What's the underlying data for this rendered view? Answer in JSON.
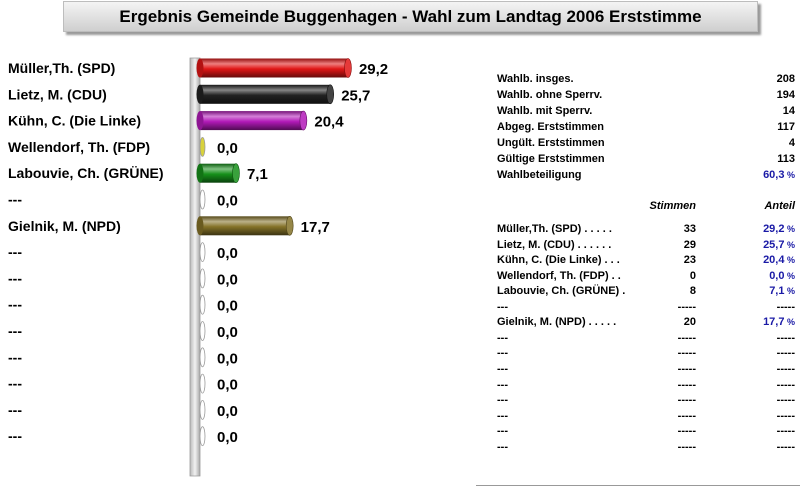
{
  "title": "Ergebnis Gemeinde Buggenhagen -  Wahl zum Landtag 2006 Erststimme",
  "chart_data": {
    "type": "bar",
    "orientation": "horizontal",
    "xlim": [
      0,
      30
    ],
    "categories": [
      "Müller,Th. (SPD)",
      "Lietz, M. (CDU)",
      "Kühn, C. (Die Linke)",
      "Wellendorf, Th. (FDP)",
      "Labouvie, Ch. (GRÜNE)",
      "---",
      "Gielnik, M. (NPD)",
      "---",
      "---",
      "---",
      "---",
      "---",
      "---",
      "---",
      "---"
    ],
    "values": [
      29.2,
      25.7,
      20.4,
      0.0,
      7.1,
      0.0,
      17.7,
      0.0,
      0.0,
      0.0,
      0.0,
      0.0,
      0.0,
      0.0,
      0.0
    ],
    "value_labels": [
      "29,2",
      "25,7",
      "20,4",
      "0,0",
      "7,1",
      "0,0",
      "17,7",
      "0,0",
      "0,0",
      "0,0",
      "0,0",
      "0,0",
      "0,0",
      "0,0",
      "0,0"
    ],
    "colors": [
      "#e01616",
      "#222222",
      "#b21ab8",
      "#d8d23c",
      "#16901a",
      "#dddddd",
      "#847228",
      "#dddddd",
      "#dddddd",
      "#dddddd",
      "#dddddd",
      "#dddddd",
      "#dddddd",
      "#dddddd",
      "#dddddd"
    ]
  },
  "summary": [
    {
      "label": "Wahlb. insges.",
      "value": "208"
    },
    {
      "label": "Wahlb. ohne Sperrv.",
      "value": "194"
    },
    {
      "label": "Wahlb. mit Sperrv.",
      "value": "14"
    },
    {
      "label": "Abgeg. Erststimmen",
      "value": "117"
    },
    {
      "label": "Ungült. Erststimmen",
      "value": "4"
    },
    {
      "label": "Gültige Erststimmen",
      "value": "113"
    },
    {
      "label": "Wahlbeteiligung",
      "value": "60,3",
      "unit": " %"
    }
  ],
  "table": {
    "headers": {
      "votes": "Stimmen",
      "share": "Anteil"
    },
    "rows": [
      {
        "name": "Müller,Th. (SPD)  .  .  .  .  .",
        "votes": "33",
        "share": "29,2",
        "unit": " %"
      },
      {
        "name": "Lietz, M. (CDU)  .  .  .  .  .  .",
        "votes": "29",
        "share": "25,7",
        "unit": " %"
      },
      {
        "name": "Kühn, C. (Die Linke)  .  .  .",
        "votes": "23",
        "share": "20,4",
        "unit": " %"
      },
      {
        "name": "Wellendorf, Th. (FDP)  .  .",
        "votes": "0",
        "share": "0,0",
        "unit": " %"
      },
      {
        "name": "Labouvie, Ch. (GRÜNE)  .",
        "votes": "8",
        "share": "7,1",
        "unit": " %"
      },
      {
        "name": "---",
        "votes": "-----",
        "share": "-----",
        "unit": ""
      },
      {
        "name": "Gielnik, M. (NPD)  .  .  .  .  .",
        "votes": "20",
        "share": "17,7",
        "unit": " %"
      },
      {
        "name": "---",
        "votes": "-----",
        "share": "-----",
        "unit": ""
      },
      {
        "name": "---",
        "votes": "-----",
        "share": "-----",
        "unit": ""
      },
      {
        "name": "---",
        "votes": "-----",
        "share": "-----",
        "unit": ""
      },
      {
        "name": "---",
        "votes": "-----",
        "share": "-----",
        "unit": ""
      },
      {
        "name": "---",
        "votes": "-----",
        "share": "-----",
        "unit": ""
      },
      {
        "name": "---",
        "votes": "-----",
        "share": "-----",
        "unit": ""
      },
      {
        "name": "---",
        "votes": "-----",
        "share": "-----",
        "unit": ""
      },
      {
        "name": "---",
        "votes": "-----",
        "share": "-----",
        "unit": ""
      }
    ]
  }
}
